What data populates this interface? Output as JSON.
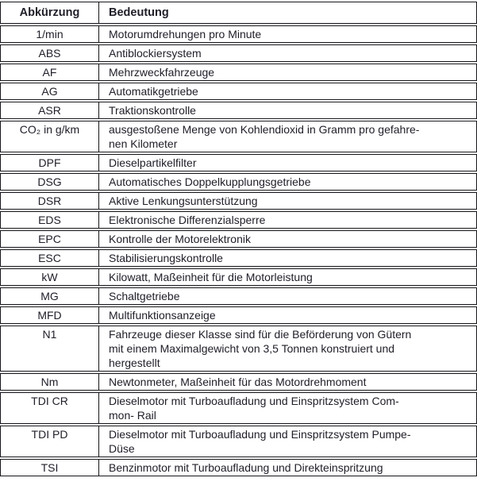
{
  "colors": {
    "text": "#20202a",
    "border": "#17171c"
  },
  "table": {
    "headers": {
      "abbr": "Abkürzung",
      "meaning": "Bedeutung"
    },
    "rows": [
      {
        "abbr": "1/min",
        "meaning": "Motorumdrehungen pro Minute"
      },
      {
        "abbr": "ABS",
        "meaning": "Antiblockiersystem"
      },
      {
        "abbr": "AF",
        "meaning": "Mehrzweckfahrzeuge"
      },
      {
        "abbr": "AG",
        "meaning": "Automatikgetriebe"
      },
      {
        "abbr": "ASR",
        "meaning": "Traktionskontrolle"
      },
      {
        "abbr": "CO₂ in g/km",
        "meaning": "ausgestoßene Menge von Kohlendioxid in Gramm pro gefahre-\nnen Kilometer"
      },
      {
        "abbr": "DPF",
        "meaning": "Dieselpartikelfilter"
      },
      {
        "abbr": "DSG",
        "meaning": "Automatisches Doppelkupplungsgetriebe"
      },
      {
        "abbr": "DSR",
        "meaning": "Aktive Lenkungsunterstützung"
      },
      {
        "abbr": "EDS",
        "meaning": "Elektronische Differenzialsperre"
      },
      {
        "abbr": "EPC",
        "meaning": "Kontrolle der Motorelektronik"
      },
      {
        "abbr": "ESC",
        "meaning": "Stabilisierungskontrolle"
      },
      {
        "abbr": "kW",
        "meaning": "Kilowatt, Maßeinheit für die Motorleistung"
      },
      {
        "abbr": "MG",
        "meaning": "Schaltgetriebe"
      },
      {
        "abbr": "MFD",
        "meaning": "Multifunktionsanzeige"
      },
      {
        "abbr": "N1",
        "meaning": "Fahrzeuge dieser Klasse sind für die Beförderung von Gütern\nmit einem Maximalgewicht von 3,5 Tonnen konstruiert und\nhergestellt"
      },
      {
        "abbr": "Nm",
        "meaning": "Newtonmeter, Maßeinheit für das Motordrehmoment"
      },
      {
        "abbr": "TDI CR",
        "meaning": "Dieselmotor mit Turboaufladung und Einspritzsystem Com-\nmon- Rail"
      },
      {
        "abbr": "TDI PD",
        "meaning": "Dieselmotor mit Turboaufladung und Einspritzsystem Pumpe-\nDüse"
      },
      {
        "abbr": "TSI",
        "meaning": "Benzinmotor mit Turboaufladung und Direkteinspritzung"
      }
    ]
  }
}
